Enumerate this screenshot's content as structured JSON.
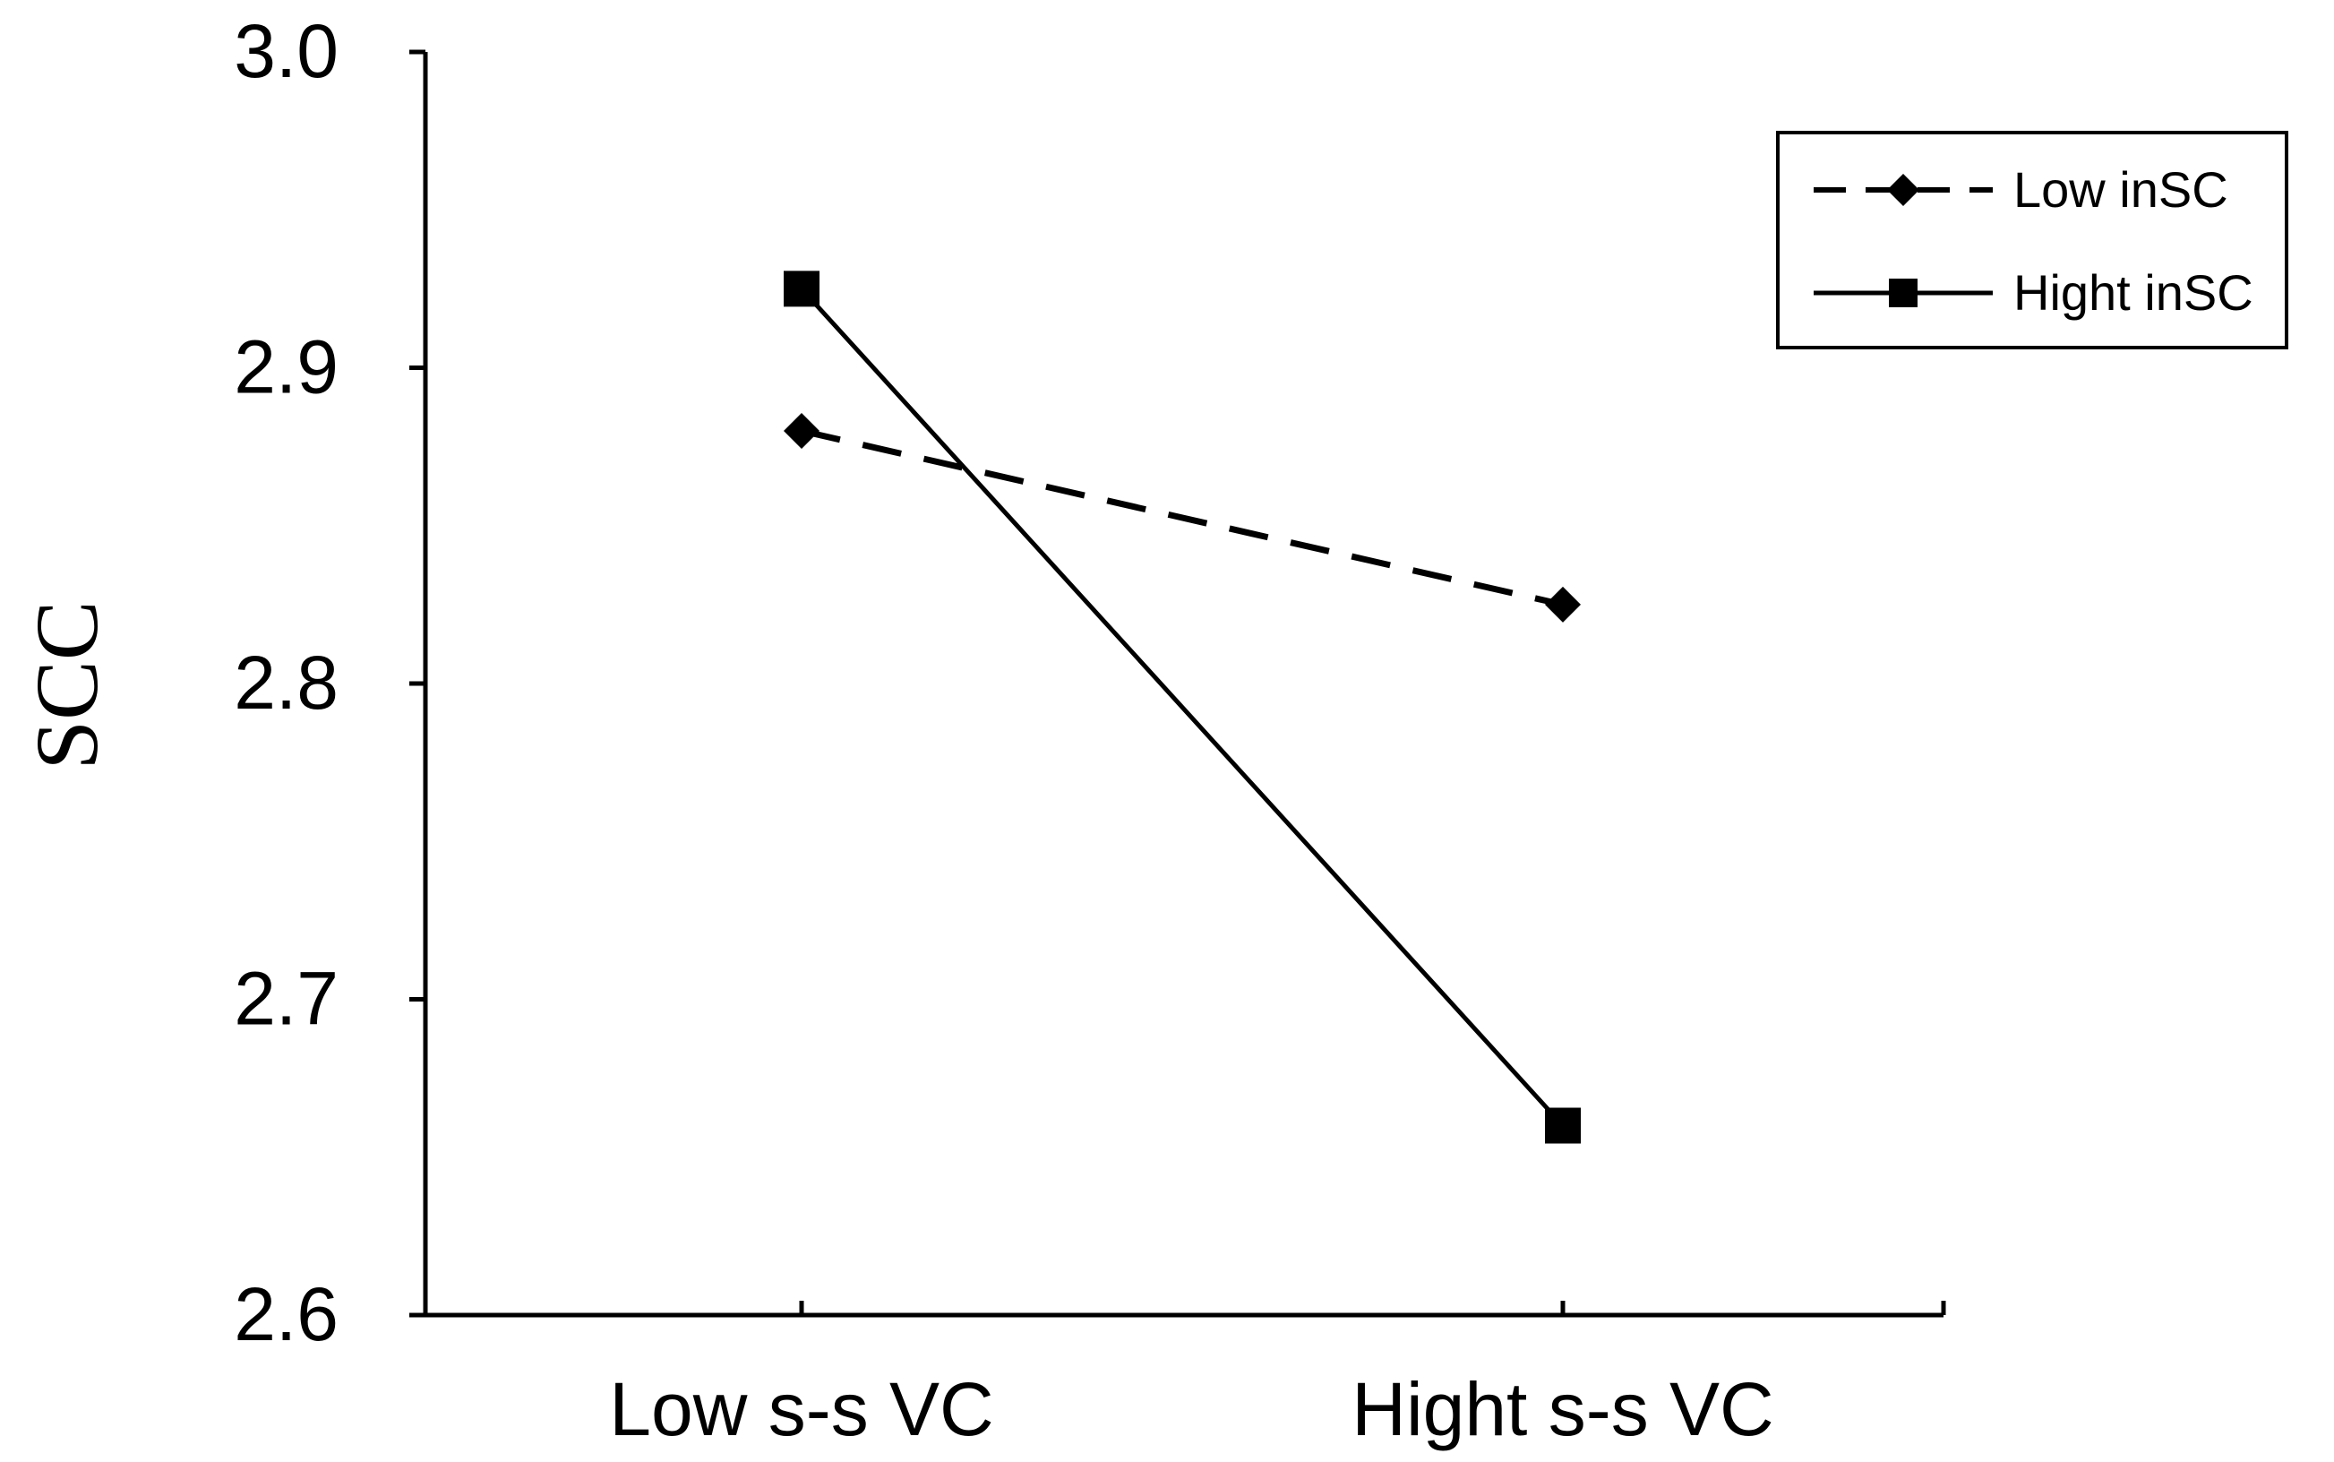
{
  "chart_data": {
    "type": "line",
    "title": "",
    "xlabel": "",
    "ylabel": "SCC",
    "categories": [
      "Low s-s VC",
      "Hight s-s VC"
    ],
    "ylim": [
      2.6,
      3.0
    ],
    "yticks": [
      "2.6",
      "2.7",
      "2.8",
      "2.9",
      "3.0"
    ],
    "grid": false,
    "legend_position": "top-right",
    "series": [
      {
        "name": "Low inSC",
        "values": [
          2.88,
          2.825
        ],
        "line": "dashed",
        "marker": "diamond",
        "color": "#000000"
      },
      {
        "name": "Hight inSC",
        "values": [
          2.925,
          2.66
        ],
        "line": "solid",
        "marker": "square",
        "color": "#000000"
      }
    ]
  }
}
